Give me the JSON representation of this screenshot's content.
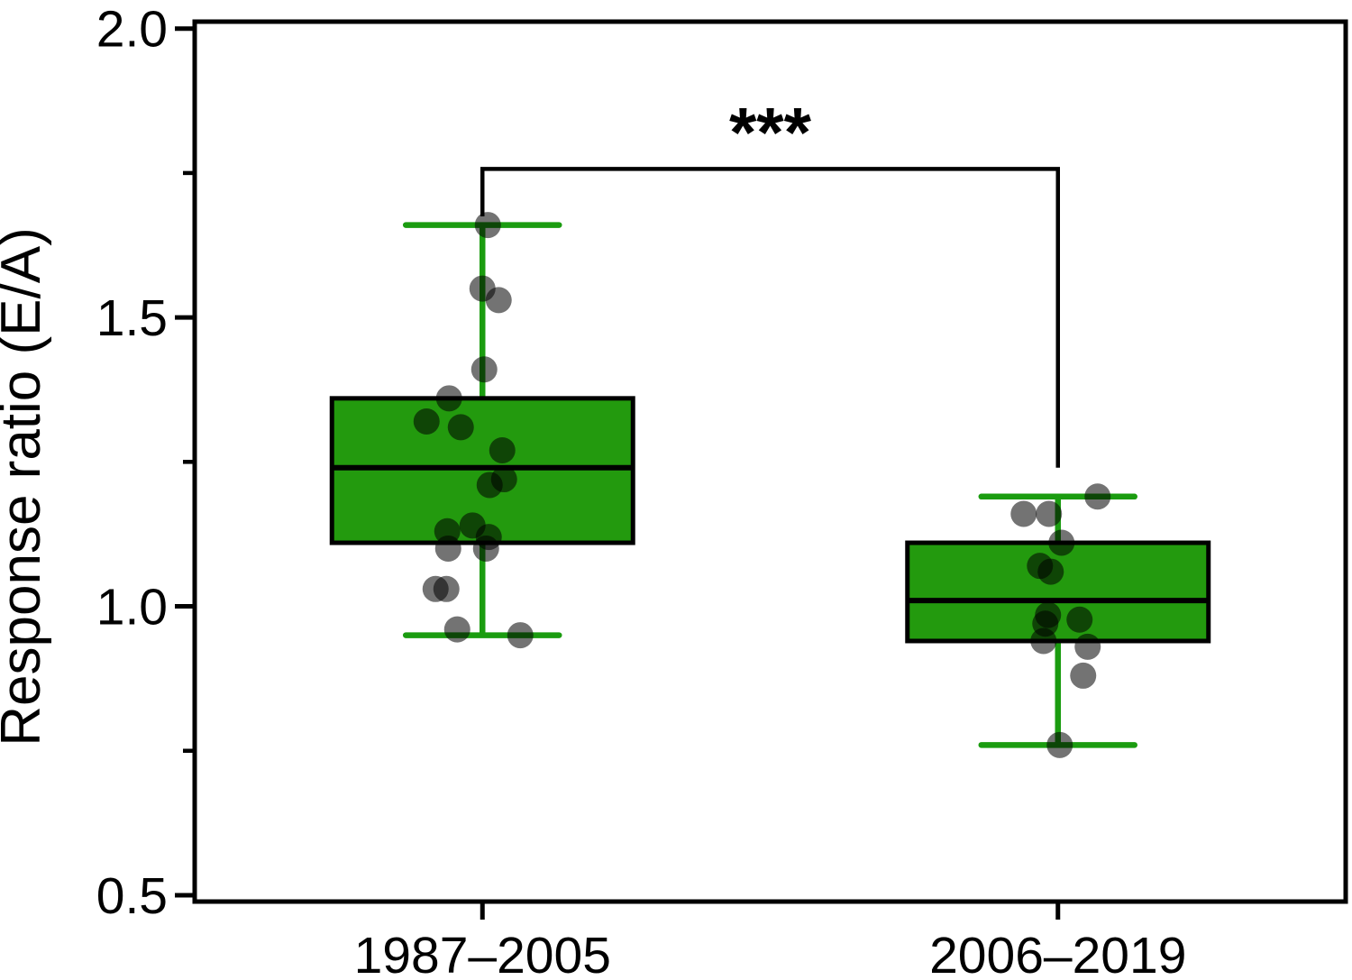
{
  "chart_data": {
    "type": "boxplot",
    "title": "",
    "xlabel": "",
    "ylabel": "Response ratio (E/A)",
    "categories": [
      "1987–2005",
      "2006–2019"
    ],
    "ylim": [
      0.489,
      2.012
    ],
    "y_major_ticks": [
      0.5,
      1.0,
      1.5,
      2.0
    ],
    "y_major_tick_labels": [
      "0.5",
      "1.0",
      "1.5",
      "2.0"
    ],
    "y_minor_ticks": [
      0.75,
      1.25,
      1.75
    ],
    "grid": "off",
    "legend": "none",
    "series": [
      {
        "name": "1987–2005",
        "whisker_low": 0.95,
        "q1": 1.11,
        "median": 1.24,
        "q3": 1.36,
        "whisker_high": 1.66,
        "points": [
          [
            6,
            1.66
          ],
          [
            0,
            1.55
          ],
          [
            18,
            1.53
          ],
          [
            2,
            1.41
          ],
          [
            -37,
            1.36
          ],
          [
            -62,
            1.32
          ],
          [
            -24,
            1.31
          ],
          [
            22,
            1.27
          ],
          [
            24,
            1.22
          ],
          [
            8,
            1.21
          ],
          [
            -11,
            1.14
          ],
          [
            -39,
            1.13
          ],
          [
            7,
            1.12
          ],
          [
            -38,
            1.1
          ],
          [
            4,
            1.1
          ],
          [
            -52,
            1.03
          ],
          [
            -40,
            1.03
          ],
          [
            -28,
            0.96
          ],
          [
            42,
            0.95
          ]
        ]
      },
      {
        "name": "2006–2019",
        "whisker_low": 0.76,
        "q1": 0.94,
        "median": 1.01,
        "q3": 1.11,
        "whisker_high": 1.19,
        "points": [
          [
            44,
            1.19
          ],
          [
            -38,
            1.16
          ],
          [
            -10,
            1.16
          ],
          [
            4,
            1.11
          ],
          [
            -20,
            1.07
          ],
          [
            -8,
            1.06
          ],
          [
            -11,
            0.985
          ],
          [
            24,
            0.977
          ],
          [
            -14,
            0.97
          ],
          [
            -16,
            0.94
          ],
          [
            33,
            0.93
          ],
          [
            28,
            0.88
          ],
          [
            2,
            0.76
          ]
        ]
      }
    ],
    "significance": {
      "label": "***",
      "groups": [
        0,
        1
      ],
      "bar_value": 1.757,
      "drop_left_value": 1.675,
      "drop_right_value": 1.24
    },
    "colors": {
      "box_fill": "#239A0E",
      "box_border": "#000000",
      "whisker": "#1B9C10",
      "median_line": "#000000",
      "point": "#000000",
      "point_opacity": 0.55,
      "bracket": "#000000",
      "axis": "#000000"
    }
  }
}
